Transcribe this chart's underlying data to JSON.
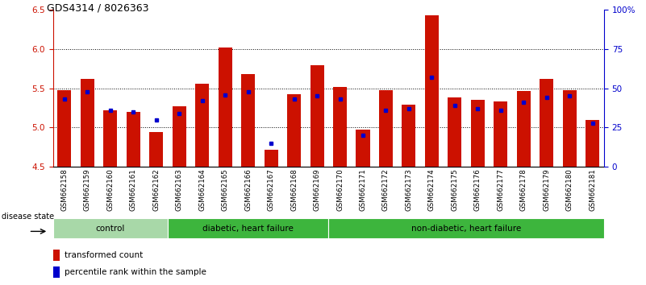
{
  "title": "GDS4314 / 8026363",
  "samples": [
    "GSM662158",
    "GSM662159",
    "GSM662160",
    "GSM662161",
    "GSM662162",
    "GSM662163",
    "GSM662164",
    "GSM662165",
    "GSM662166",
    "GSM662167",
    "GSM662168",
    "GSM662169",
    "GSM662170",
    "GSM662171",
    "GSM662172",
    "GSM662173",
    "GSM662174",
    "GSM662175",
    "GSM662176",
    "GSM662177",
    "GSM662178",
    "GSM662179",
    "GSM662180",
    "GSM662181"
  ],
  "red_values": [
    5.48,
    5.62,
    5.22,
    5.2,
    4.94,
    5.27,
    5.56,
    6.02,
    5.68,
    4.72,
    5.43,
    5.8,
    5.52,
    4.97,
    5.48,
    5.29,
    6.43,
    5.38,
    5.35,
    5.33,
    5.47,
    5.62,
    5.48,
    5.1
  ],
  "blue_percentile": [
    43,
    48,
    36,
    35,
    30,
    34,
    42,
    46,
    48,
    15,
    43,
    45,
    43,
    20,
    36,
    37,
    57,
    39,
    37,
    36,
    41,
    44,
    45,
    28
  ],
  "ymin": 4.5,
  "ymax": 6.5,
  "yticks_left": [
    4.5,
    5.0,
    5.5,
    6.0,
    6.5
  ],
  "yticks_right": [
    0,
    25,
    50,
    75,
    100
  ],
  "bar_color": "#CC1100",
  "dot_color": "#0000CC",
  "baseline": 4.5,
  "bar_width": 0.6,
  "group_colors": [
    "#a8d8a8",
    "#3db53d",
    "#3db53d"
  ],
  "group_labels": [
    "control",
    "diabetic, heart failure",
    "non-diabetic, heart failure"
  ],
  "group_ranges": [
    [
      0,
      5
    ],
    [
      5,
      12
    ],
    [
      12,
      24
    ]
  ],
  "title_fontsize": 9,
  "tick_fontsize": 7.5,
  "sample_fontsize": 6.2,
  "group_fontsize": 7.5,
  "legend_fontsize": 7.5
}
